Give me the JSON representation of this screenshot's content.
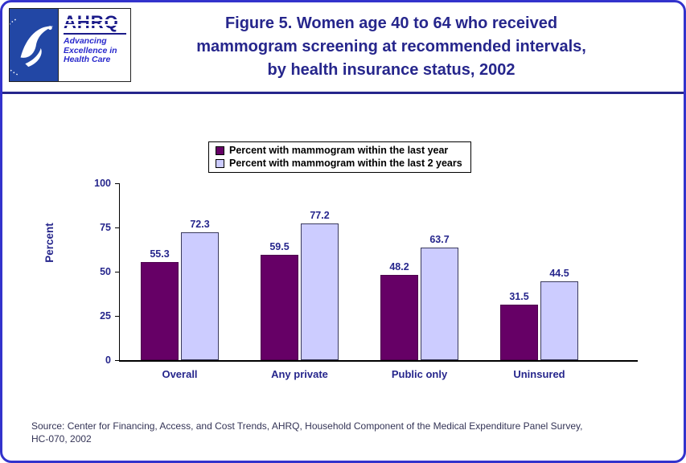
{
  "header": {
    "title_lines": [
      "Figure 5. Women age 40 to 64 who received",
      "mammogram screening at recommended intervals,",
      "by health insurance status, 2002"
    ],
    "logos": {
      "hhs_name": "hhs-seal",
      "ahrq_wordmark": "AHRQ",
      "tagline_lines": [
        "Advancing",
        "Excellence in",
        "Health Care"
      ]
    }
  },
  "chart_data": {
    "type": "bar",
    "categories": [
      "Overall",
      "Any private",
      "Public only",
      "Uninsured"
    ],
    "series": [
      {
        "name": "Percent with mammogram within the last year",
        "color": "#660066",
        "values": [
          55.3,
          59.5,
          48.2,
          31.5
        ]
      },
      {
        "name": "Percent with mammogram within the last 2 years",
        "color": "#CCCCFF",
        "values": [
          72.3,
          77.2,
          63.7,
          44.5
        ]
      }
    ],
    "title": "Figure 5. Women age 40 to 64 who received mammogram screening at recommended intervals, by health insurance status, 2002",
    "xlabel": "",
    "ylabel": "Percent",
    "ylim": [
      0,
      100
    ],
    "yticks": [
      0,
      25,
      50,
      75,
      100
    ],
    "legend_position": "top",
    "grid": false
  },
  "source": {
    "lines": [
      "Source: Center for Financing, Access, and Cost Trends, AHRQ, Household Component of the Medical Expenditure Panel Survey,",
      "HC-070, 2002"
    ]
  },
  "colors": {
    "navy": "#26268C",
    "border_blue": "#3333CC",
    "bar_dark": "#660066",
    "bar_light": "#CCCCFF",
    "legend_text": "#000000"
  }
}
